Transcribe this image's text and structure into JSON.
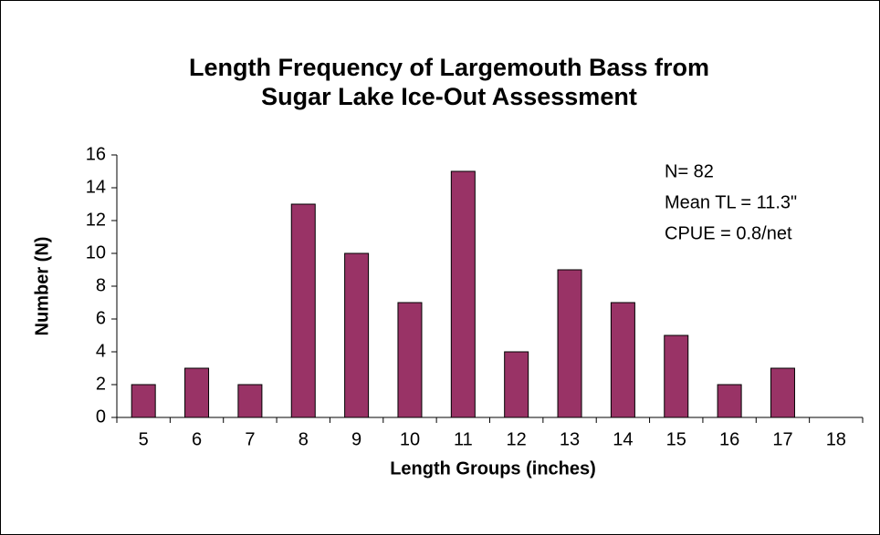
{
  "chart_data": {
    "type": "bar",
    "title": [
      "Length Frequency of Largemouth Bass from",
      "Sugar Lake Ice-Out Assessment"
    ],
    "x_label": "Length Groups (inches)",
    "y_label": "Number (N)",
    "annotations": [
      "N= 82",
      "Mean TL = 11.3\"",
      "CPUE = 0.8/net"
    ],
    "categories": [
      "5",
      "6",
      "7",
      "8",
      "9",
      "10",
      "11",
      "12",
      "13",
      "14",
      "15",
      "16",
      "17",
      "18"
    ],
    "values": [
      2,
      3,
      2,
      13,
      10,
      7,
      15,
      4,
      9,
      7,
      5,
      2,
      3,
      0
    ],
    "color": "#993366",
    "ylim": [
      0,
      16
    ],
    "yticks": [
      0,
      2,
      4,
      6,
      8,
      10,
      12,
      14,
      16
    ],
    "grid": false
  }
}
